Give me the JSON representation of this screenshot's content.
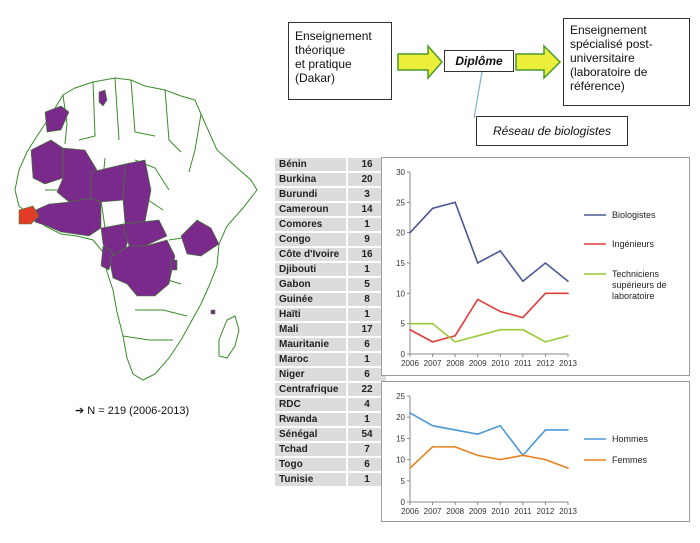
{
  "flow": {
    "teaching_lines": [
      "Enseignement",
      "théorique",
      "et pratique",
      "(Dakar)"
    ],
    "diplome": "Diplôme",
    "specialized_lines": [
      "Enseignement",
      "spécialisé post-",
      "universitaire",
      "(laboratoire de",
      "référence)"
    ],
    "network": "Réseau de biologistes"
  },
  "colors": {
    "map_highlight": "#7a2a8a",
    "map_senegal": "#e23b26",
    "map_outline": "#3a8a2a",
    "arrow_fill": "#ecef3a",
    "arrow_stroke": "#4a9a2a",
    "connector": "#7fb0d6",
    "biologistes": "#4a5a94",
    "ingenieurs": "#e23b3b",
    "techniciens": "#9ac93a",
    "hommes": "#4a9ad6",
    "femmes": "#e8801e"
  },
  "table": {
    "rows": [
      {
        "country": "Bénin",
        "value": "16"
      },
      {
        "country": "Burkina",
        "value": "20"
      },
      {
        "country": "Burundi",
        "value": "3"
      },
      {
        "country": "Cameroun",
        "value": "14"
      },
      {
        "country": "Comores",
        "value": "1"
      },
      {
        "country": "Congo",
        "value": "9"
      },
      {
        "country": "Côte d'Ivoire",
        "value": "16"
      },
      {
        "country": "Djibouti",
        "value": "1"
      },
      {
        "country": "Gabon",
        "value": "5"
      },
      {
        "country": "Guinée",
        "value": "8"
      },
      {
        "country": "Haïti",
        "value": "1"
      },
      {
        "country": "Mali",
        "value": "17"
      },
      {
        "country": "Mauritanie",
        "value": "6"
      },
      {
        "country": "Maroc",
        "value": "1"
      },
      {
        "country": "Niger",
        "value": "6"
      },
      {
        "country": "Centrafrique",
        "value": "22"
      },
      {
        "country": "RDC",
        "value": "4"
      },
      {
        "country": "Rwanda",
        "value": "1"
      },
      {
        "country": "Sénégal",
        "value": "54"
      },
      {
        "country": "Tchad",
        "value": "7"
      },
      {
        "country": "Togo",
        "value": "6"
      },
      {
        "country": "Tunisie",
        "value": "1"
      }
    ]
  },
  "total_note": {
    "arrow": "➔",
    "text": "N = 219  (2006-2013)"
  },
  "chart_data": [
    {
      "type": "line",
      "x": [
        "2006",
        "2007",
        "2008",
        "2009",
        "2010",
        "2011",
        "2012",
        "2013"
      ],
      "ylim": [
        0,
        30
      ],
      "yticks": [
        "0",
        "5",
        "10",
        "15",
        "20",
        "25",
        "30"
      ],
      "legend_position": "right",
      "grid": false,
      "series": [
        {
          "name": "Biologistes",
          "values": [
            20,
            24,
            25,
            15,
            17,
            12,
            15,
            12
          ]
        },
        {
          "name": "Ingénieurs",
          "values": [
            4,
            2,
            3,
            9,
            7,
            6,
            10,
            10
          ]
        },
        {
          "name": "Techniciens supérieurs de laboratoire",
          "legend_lines": [
            "Techniciens",
            "supérieurs de",
            "laboratoire"
          ],
          "values": [
            5,
            5,
            2,
            3,
            4,
            4,
            2,
            3
          ]
        }
      ]
    },
    {
      "type": "line",
      "x": [
        "2006",
        "2007",
        "2008",
        "2009",
        "2010",
        "2011",
        "2012",
        "2013"
      ],
      "ylim": [
        0,
        25
      ],
      "yticks": [
        "0",
        "5",
        "10",
        "15",
        "20",
        "25"
      ],
      "legend_position": "right",
      "grid": false,
      "series": [
        {
          "name": "Hommes",
          "values": [
            21,
            18,
            17,
            16,
            18,
            11,
            17,
            17
          ]
        },
        {
          "name": "Femmes",
          "values": [
            8,
            13,
            13,
            11,
            10,
            11,
            10,
            8
          ]
        }
      ]
    }
  ]
}
